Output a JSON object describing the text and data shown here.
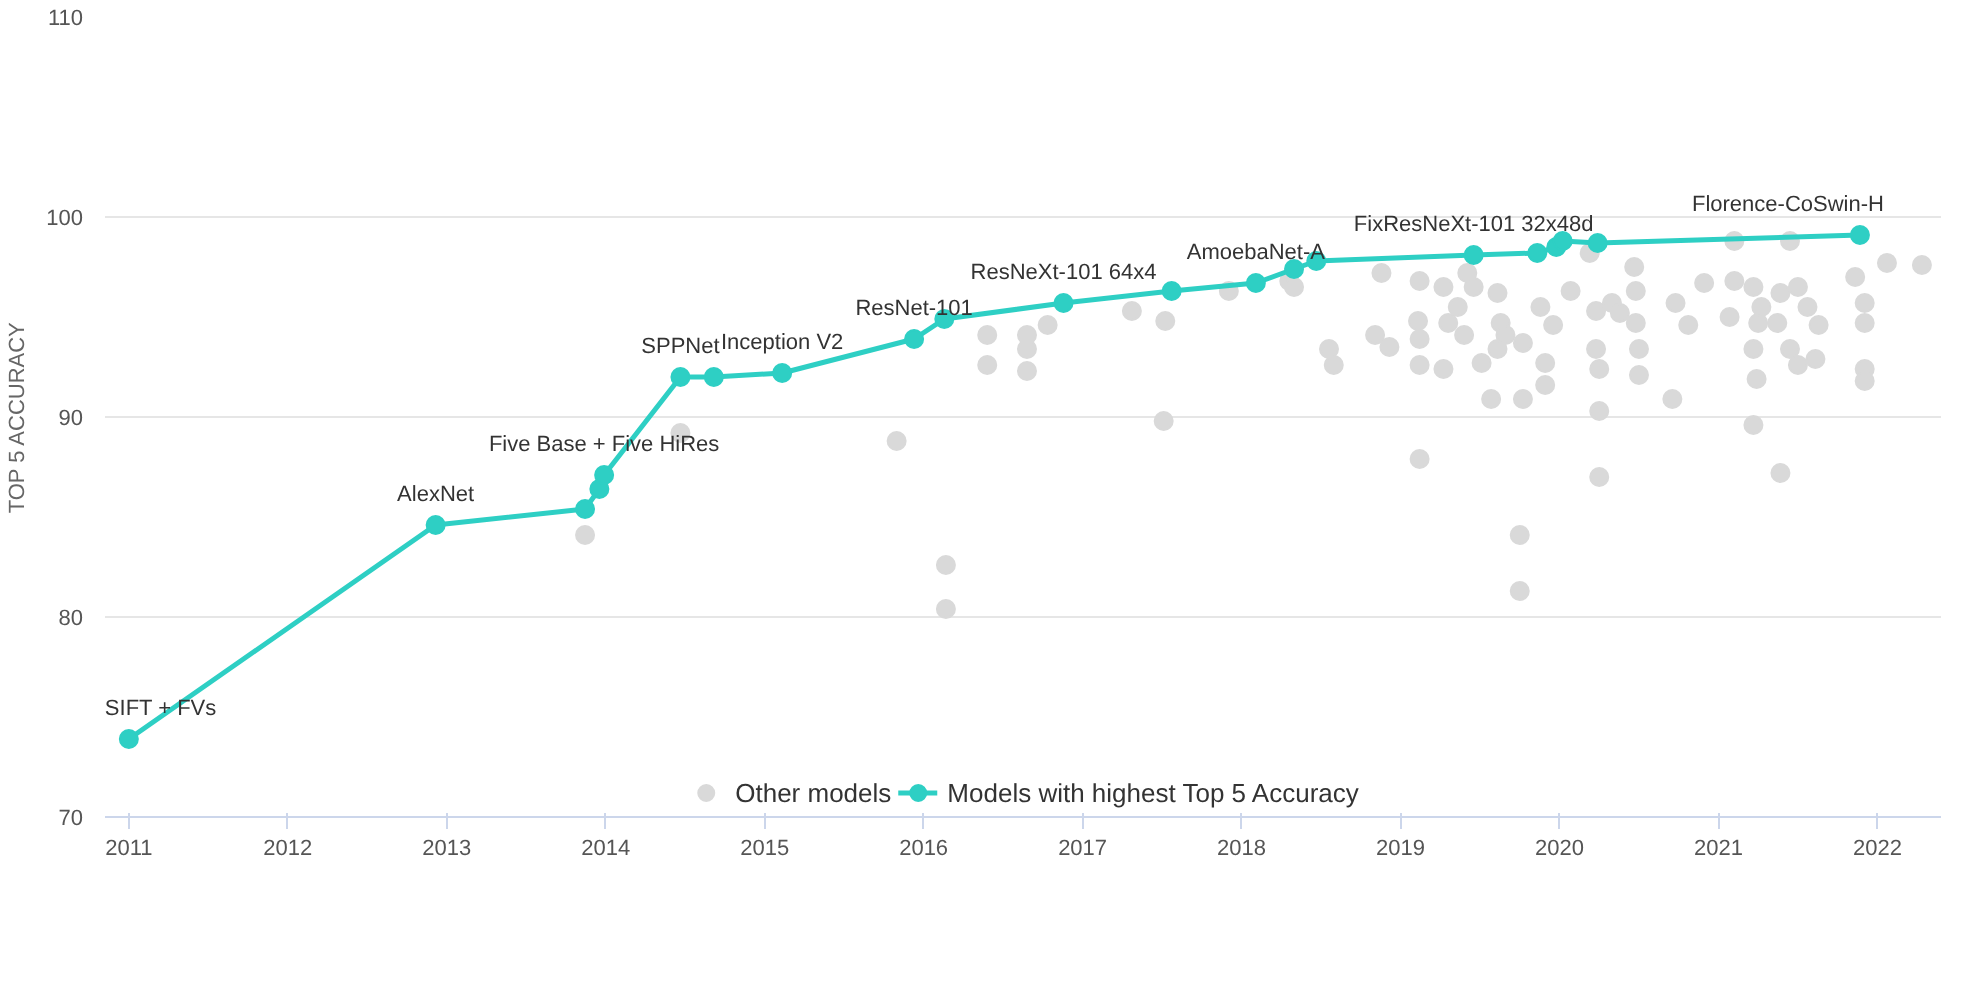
{
  "chart_data": {
    "type": "scatter",
    "ylabel": "TOP 5 ACCURACY",
    "xlim": [
      2010.85,
      2022.4
    ],
    "xticks": [
      2011,
      2012,
      2013,
      2014,
      2015,
      2016,
      2017,
      2018,
      2019,
      2020,
      2021,
      2022
    ],
    "ylim": [
      70,
      110
    ],
    "yticks": [
      70,
      80,
      90,
      100,
      110
    ],
    "grid": "y",
    "legend": "bottom",
    "marker": "circle",
    "series": [
      {
        "name": "Other models",
        "color": "#d9d9d9",
        "x": [
          2013.87,
          2014.47,
          2015.83,
          2016.14,
          2016.14,
          2016.4,
          2016.4,
          2016.65,
          2016.65,
          2016.65,
          2016.78,
          2017.31,
          2017.52,
          2017.51,
          2017.92,
          2018.3,
          2018.33,
          2018.55,
          2018.58,
          2018.84,
          2018.88,
          2018.93,
          2019.12,
          2019.11,
          2019.12,
          2019.12,
          2019.12,
          2019.27,
          2019.3,
          2019.27,
          2019.36,
          2019.4,
          2019.42,
          2019.46,
          2019.51,
          2019.57,
          2019.61,
          2019.63,
          2019.61,
          2019.66,
          2019.77,
          2019.77,
          2019.75,
          2019.75,
          2019.88,
          2019.91,
          2019.91,
          2019.96,
          2020.07,
          2020.19,
          2020.23,
          2020.23,
          2020.25,
          2020.25,
          2020.25,
          2020.33,
          2020.38,
          2020.47,
          2020.48,
          2020.48,
          2020.5,
          2020.5,
          2020.71,
          2020.73,
          2020.81,
          2020.91,
          2021.1,
          2021.1,
          2021.07,
          2021.22,
          2021.25,
          2021.22,
          2021.24,
          2021.22,
          2021.27,
          2021.39,
          2021.39,
          2021.37,
          2021.45,
          2021.45,
          2021.5,
          2021.5,
          2021.56,
          2021.63,
          2021.61,
          2021.86,
          2021.92,
          2021.92,
          2021.92,
          2021.92,
          2022.06,
          2022.28
        ],
        "values": [
          84.1,
          89.2,
          88.8,
          82.6,
          80.4,
          94.1,
          92.6,
          94.1,
          93.4,
          92.3,
          94.6,
          95.3,
          94.8,
          89.8,
          96.3,
          96.8,
          96.5,
          93.4,
          92.6,
          94.1,
          97.2,
          93.5,
          96.8,
          94.8,
          93.9,
          92.6,
          87.9,
          96.5,
          94.7,
          92.4,
          95.5,
          94.1,
          97.2,
          96.5,
          92.7,
          90.9,
          96.2,
          94.7,
          93.4,
          94.1,
          93.7,
          90.9,
          84.1,
          81.3,
          95.5,
          92.7,
          91.6,
          94.6,
          96.3,
          98.2,
          95.3,
          93.4,
          92.4,
          90.3,
          87.0,
          95.7,
          95.2,
          97.5,
          96.3,
          94.7,
          93.4,
          92.1,
          90.9,
          95.7,
          94.6,
          96.7,
          98.8,
          96.8,
          95.0,
          96.5,
          94.7,
          93.4,
          91.9,
          89.6,
          95.5,
          87.2,
          96.2,
          94.7,
          98.8,
          93.4,
          92.6,
          96.5,
          95.5,
          94.6,
          92.9,
          97.0,
          95.7,
          94.7,
          92.4,
          91.8,
          97.7,
          97.6
        ]
      },
      {
        "name": "Models with highest Top 5 Accuracy",
        "type": "line",
        "color": "#2ecfc4",
        "marker": "circle",
        "line_style": "solid",
        "x": [
          2011.0,
          2012.93,
          2013.87,
          2013.96,
          2013.99,
          2014.47,
          2014.68,
          2015.11,
          2015.94,
          2016.13,
          2016.88,
          2017.56,
          2018.09,
          2018.33,
          2018.47,
          2019.46,
          2019.86,
          2019.98,
          2020.02,
          2020.24,
          2021.89
        ],
        "values": [
          73.9,
          84.6,
          85.4,
          86.4,
          87.1,
          92.0,
          92.0,
          92.2,
          93.9,
          94.9,
          95.7,
          96.3,
          96.7,
          97.4,
          97.8,
          98.1,
          98.2,
          98.5,
          98.8,
          98.7,
          99.1
        ]
      }
    ],
    "annotations": [
      {
        "text": "SIFT + FVs",
        "x": 2011.0,
        "y": 73.9
      },
      {
        "text": "AlexNet",
        "x": 2012.93,
        "y": 84.6
      },
      {
        "text": "Five Base + Five HiRes",
        "x": 2013.99,
        "y": 87.1
      },
      {
        "text": "SPPNet",
        "x": 2014.47,
        "y": 92.0
      },
      {
        "text": "Inception V2",
        "x": 2015.11,
        "y": 92.2
      },
      {
        "text": "ResNet-101",
        "x": 2015.94,
        "y": 93.9
      },
      {
        "text": "ResNeXt-101 64x4",
        "x": 2016.88,
        "y": 95.7
      },
      {
        "text": "AmoebaNet-A",
        "x": 2018.09,
        "y": 96.7
      },
      {
        "text": "FixResNeXt-101 32x48d",
        "x": 2019.46,
        "y": 98.1
      },
      {
        "text": "Florence-CoSwin-H",
        "x": 2021.89,
        "y": 99.1
      }
    ]
  }
}
